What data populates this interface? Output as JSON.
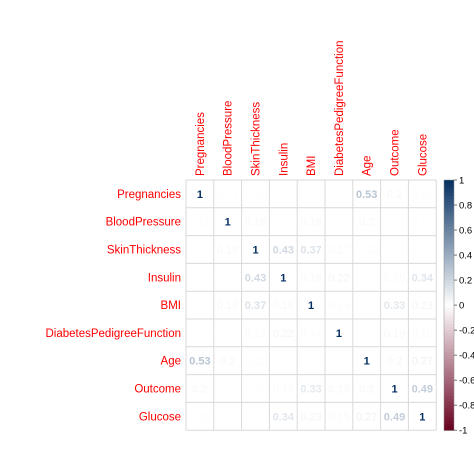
{
  "chart_data": {
    "type": "heatmap",
    "title": "",
    "variables": [
      "Pregnancies",
      "BloodPressure",
      "SkinThickness",
      "Insulin",
      "BMI",
      "DiabetesPedigreeFunction",
      "Age",
      "Outcome",
      "Glucose"
    ],
    "matrix": [
      [
        1,
        0.11,
        -0.08,
        -0.07,
        0.02,
        -0.03,
        0.53,
        0.2,
        0.13
      ],
      [
        0.11,
        1,
        0.18,
        0.09,
        0.18,
        0.04,
        0.2,
        0.07,
        0.12
      ],
      [
        -0.08,
        0.18,
        1,
        0.43,
        0.37,
        0.17,
        -0.13,
        0.07,
        0.07
      ],
      [
        -0.07,
        0.09,
        0.43,
        1,
        0.18,
        0.22,
        0.02,
        0.15,
        0.34
      ],
      [
        0.02,
        0.18,
        0.37,
        0.18,
        1,
        0.14,
        0.03,
        0.33,
        0.23
      ],
      [
        -0.03,
        0.04,
        0.17,
        0.22,
        0.14,
        1,
        0.04,
        0.19,
        0.15
      ],
      [
        0.53,
        0.2,
        -0.13,
        0.02,
        0.03,
        0.04,
        1,
        0.2,
        0.27
      ],
      [
        0.2,
        0.07,
        0.07,
        0.15,
        0.33,
        0.19,
        0.2,
        1,
        0.49
      ],
      [
        0.13,
        0.12,
        0.07,
        0.34,
        0.23,
        0.15,
        0.27,
        0.49,
        1
      ]
    ],
    "color_scale": {
      "range": [
        -1,
        1
      ],
      "ticks": [
        "1",
        "0.8",
        "0.6",
        "0.4",
        "0.2",
        "0",
        "-0.2",
        "-0.4",
        "-0.6",
        "-0.8",
        "-1"
      ],
      "negative_color": "#67001F",
      "neutral_color": "#FFFFFF",
      "positive_color": "#053061"
    },
    "label_color": "#FF0000",
    "grid": true
  }
}
